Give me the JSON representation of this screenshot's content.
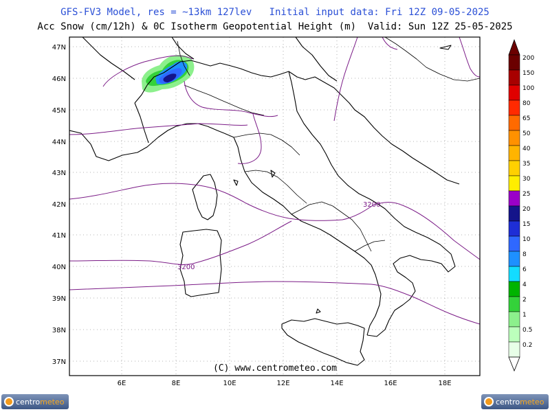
{
  "header": {
    "line1": "GFS-FV3 Model, res = ~13km 127lev   Initial input data: Fri 12Z 09-05-2025",
    "line2": "Acc Snow (cm/12h) & 0C Isotherm Geopotential Height (m)  Valid: Sun 12Z 25-05-2025"
  },
  "map": {
    "copyright": "(C) www.centrometeo.com",
    "lat_labels": [
      "47N",
      "46N",
      "45N",
      "44N",
      "43N",
      "42N",
      "41N",
      "40N",
      "39N",
      "38N",
      "37N"
    ],
    "lon_labels": [
      "6E",
      "8E",
      "10E",
      "12E",
      "14E",
      "16E",
      "18E"
    ],
    "isotherm_labels": [
      "3200",
      "3200"
    ],
    "colors": {
      "coast": "#000000",
      "contour": "#7a1a86",
      "frame": "#000000"
    }
  },
  "legend": {
    "levels": [
      "200",
      "150",
      "100",
      "80",
      "65",
      "50",
      "40",
      "35",
      "30",
      "25",
      "20",
      "15",
      "10",
      "8",
      "6",
      "4",
      "2",
      "1",
      "0.5",
      "0.2"
    ],
    "colors": [
      "#6b0000",
      "#a80000",
      "#e00000",
      "#ff2a00",
      "#ff6a00",
      "#ff9100",
      "#ffb400",
      "#ffd000",
      "#ffee00",
      "#9a00c8",
      "#14148a",
      "#1e2ed6",
      "#2f68ff",
      "#1e90ff",
      "#13dcff",
      "#00b400",
      "#34d23a",
      "#8cf08c",
      "#bcffbc",
      "#e8ffe8"
    ]
  },
  "footer": {
    "logo_left": [
      "centro",
      "meteo"
    ],
    "logo_right": [
      "centro",
      "meteo"
    ]
  }
}
